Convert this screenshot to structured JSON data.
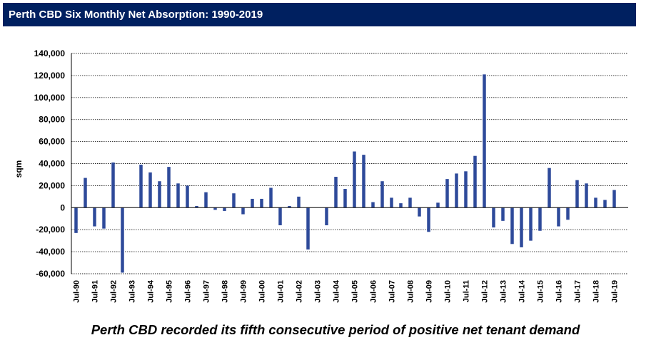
{
  "header": {
    "title": "Perth CBD Six Monthly Net Absorption: 1990-2019"
  },
  "colors": {
    "header_bg": "#002060",
    "bar": "#2E4A9A"
  },
  "chart_data": {
    "type": "bar",
    "title": "Perth CBD Six Monthly Net Absorption: 1990-2019",
    "xlabel": "",
    "ylabel": "sqm",
    "ylim": [
      -60000,
      140000
    ],
    "yticks": [
      140000,
      120000,
      100000,
      80000,
      60000,
      40000,
      20000,
      0,
      -20000,
      -40000,
      -60000
    ],
    "ytick_labels": [
      "140,000",
      "120,000",
      "100,000",
      "80,000",
      "60,000",
      "40,000",
      "20,000",
      "0",
      "-20,000",
      "-40,000",
      "-60,000"
    ],
    "grid": true,
    "xtick_labels": [
      "Jul-90",
      "Jul-91",
      "Jul-92",
      "Jul-93",
      "Jul-94",
      "Jul-95",
      "Jul-96",
      "Jul-97",
      "Jul-98",
      "Jul-99",
      "Jul-00",
      "Jul-01",
      "Jul-02",
      "Jul-03",
      "Jul-04",
      "Jul-05",
      "Jul-06",
      "Jul-07",
      "Jul-08",
      "Jul-09",
      "Jul-10",
      "Jul-11",
      "Jul-12",
      "Jul-13",
      "Jul-14",
      "Jul-15",
      "Jul-16",
      "Jul-17",
      "Jul-18",
      "Jul-19"
    ],
    "categories": [
      "Jul-90",
      "Jan-91",
      "Jul-91",
      "Jan-92",
      "Jul-92",
      "Jan-93",
      "Jul-93",
      "Jan-94",
      "Jul-94",
      "Jan-95",
      "Jul-95",
      "Jan-96",
      "Jul-96",
      "Jan-97",
      "Jul-97",
      "Jan-98",
      "Jul-98",
      "Jan-99",
      "Jul-99",
      "Jan-00",
      "Jul-00",
      "Jan-01",
      "Jul-01",
      "Jan-02",
      "Jul-02",
      "Jan-03",
      "Jul-03",
      "Jan-04",
      "Jul-04",
      "Jan-05",
      "Jul-05",
      "Jan-06",
      "Jul-06",
      "Jan-07",
      "Jul-07",
      "Jan-08",
      "Jul-08",
      "Jan-09",
      "Jul-09",
      "Jan-10",
      "Jul-10",
      "Jan-11",
      "Jul-11",
      "Jan-12",
      "Jul-12",
      "Jan-13",
      "Jul-13",
      "Jan-14",
      "Jul-14",
      "Jan-15",
      "Jul-15",
      "Jan-16",
      "Jul-16",
      "Jan-17",
      "Jul-17",
      "Jan-18",
      "Jul-18",
      "Jan-19",
      "Jul-19",
      "Jan-20"
    ],
    "series": [
      {
        "name": "Net Absorption",
        "values": [
          -23000,
          27000,
          -17000,
          -19000,
          41000,
          -59000,
          0,
          39000,
          32000,
          24000,
          37000,
          22000,
          20000,
          1500,
          14000,
          -2000,
          -3000,
          13000,
          -6000,
          8000,
          8000,
          18000,
          -16000,
          1500,
          10000,
          -38000,
          0,
          -16000,
          28000,
          17000,
          51000,
          48000,
          5000,
          24000,
          9000,
          4000,
          9000,
          -8000,
          -22000,
          4500,
          26000,
          31000,
          33000,
          47000,
          121000,
          -18000,
          -12000,
          -33000,
          -36000,
          -30000,
          -21000,
          36000,
          -17000,
          -11000,
          25000,
          22000,
          9000,
          7000,
          16000,
          0
        ]
      }
    ],
    "caption": "Perth CBD recorded its fifth consecutive period of positive net tenant demand"
  }
}
